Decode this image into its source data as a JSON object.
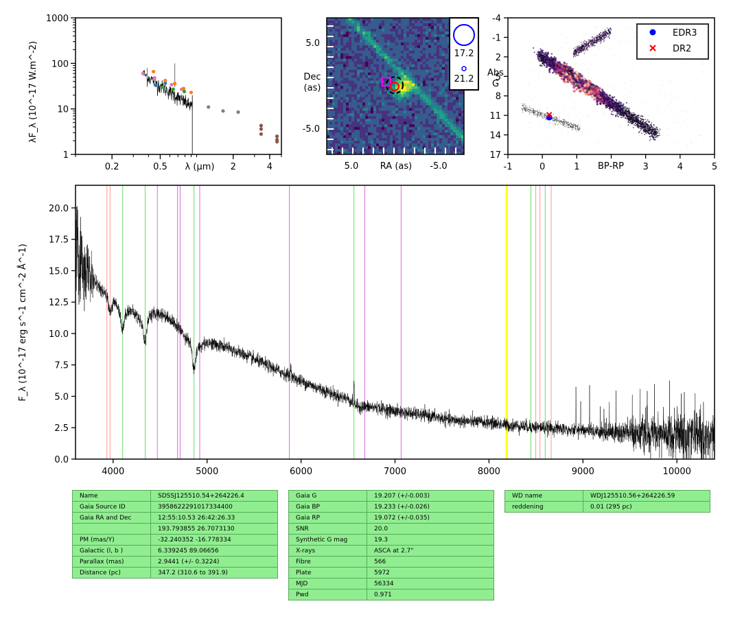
{
  "sed": {
    "ylabel": "λF_λ (10^-17 W.m^-2)",
    "xlabel": "λ (μm)",
    "x_ticks": [
      "0.2",
      "0.5",
      "2",
      "4"
    ],
    "y_ticks": [
      "1",
      "10",
      "100",
      "1000"
    ],
    "chart_data": {
      "type": "scatter",
      "x_scale": "log",
      "y_scale": "log",
      "xlim": [
        0.1,
        5
      ],
      "ylim": [
        1,
        1000
      ],
      "series": [
        {
          "color": "#e377c2",
          "points": [
            [
              0.36,
              60
            ],
            [
              0.45,
              48
            ],
            [
              0.62,
              34
            ],
            [
              0.75,
              27
            ]
          ]
        },
        {
          "color": "#1f77b4",
          "points": [
            [
              0.46,
              33
            ],
            [
              0.55,
              37
            ]
          ]
        },
        {
          "color": "#ff7f0e",
          "points": [
            [
              0.44,
              66
            ],
            [
              0.55,
              42
            ],
            [
              0.66,
              36
            ],
            [
              0.78,
              28
            ],
            [
              0.9,
              23
            ]
          ]
        },
        {
          "color": "#2ca02c",
          "points": [
            [
              0.52,
              30
            ],
            [
              0.64,
              27
            ],
            [
              0.79,
              24
            ]
          ]
        },
        {
          "color": "#7f7f7f",
          "points": [
            [
              1.25,
              11
            ],
            [
              1.65,
              9
            ],
            [
              2.2,
              8.5
            ]
          ]
        },
        {
          "color": "#8c564b",
          "points": [
            [
              3.4,
              4.3
            ],
            [
              3.4,
              3.6
            ],
            [
              3.4,
              2.8
            ],
            [
              4.6,
              2.5
            ],
            [
              4.6,
              2.1
            ],
            [
              4.6,
              1.9
            ]
          ]
        }
      ]
    }
  },
  "image": {
    "xlabel": "RA (as)",
    "ylabel_line1": "Dec",
    "ylabel_line2": "(as)",
    "x_ticks": [
      "5.0",
      "-5.0"
    ],
    "y_ticks": [
      "5.0",
      "-5.0"
    ],
    "legend_mag_big": "17.2",
    "legend_mag_small": "21.2"
  },
  "hrd": {
    "xlabel": "BP-RP",
    "ylabel_line1": "Abs",
    "ylabel_line2": "G",
    "x_ticks": [
      "-1",
      "0",
      "1",
      "3",
      "4",
      "5"
    ],
    "y_ticks": [
      "-4",
      "-1",
      "2",
      "5",
      "8",
      "11",
      "14",
      "17"
    ],
    "legend": [
      {
        "label": "EDR3",
        "color": "#0000ff",
        "marker": "circle"
      },
      {
        "label": "DR2",
        "color": "#ff0000",
        "marker": "x"
      }
    ],
    "chart_data": {
      "type": "scatter",
      "xlim": [
        -1,
        5
      ],
      "ylim": [
        17,
        -4
      ],
      "points": [
        {
          "series": "EDR3",
          "x": 0.2,
          "y": 11.3
        },
        {
          "series": "DR2",
          "x": 0.2,
          "y": 10.9
        }
      ]
    }
  },
  "spectrum": {
    "ylabel": "F_λ (10^-17 erg s^-1 cm^-2 Å^-1)",
    "x_ticks": [
      "4000",
      "5000",
      "6000",
      "7000",
      "8000",
      "9000",
      "10000"
    ],
    "y_ticks": [
      "0.0",
      "2.5",
      "5.0",
      "7.5",
      "10.0",
      "12.5",
      "15.0",
      "17.5",
      "20.0"
    ],
    "chart_data": {
      "type": "line",
      "xlim": [
        3600,
        10400
      ],
      "ylim": [
        0,
        21.8
      ],
      "continuum": [
        [
          3600,
          16.5
        ],
        [
          3700,
          15.2
        ],
        [
          3800,
          14.2
        ],
        [
          3900,
          13.2
        ],
        [
          4000,
          12.6
        ],
        [
          4100,
          11.8
        ],
        [
          4200,
          11.8
        ],
        [
          4300,
          11.0
        ],
        [
          4400,
          11.5
        ],
        [
          4500,
          11.6
        ],
        [
          4600,
          11.2
        ],
        [
          4700,
          10.4
        ],
        [
          4800,
          9.5
        ],
        [
          4900,
          8.9
        ],
        [
          5000,
          9.3
        ],
        [
          5200,
          8.9
        ],
        [
          5400,
          8.3
        ],
        [
          5600,
          7.6
        ],
        [
          5800,
          6.9
        ],
        [
          6000,
          6.2
        ],
        [
          6200,
          5.6
        ],
        [
          6400,
          5.0
        ],
        [
          6500,
          4.8
        ],
        [
          6600,
          4.2
        ],
        [
          6800,
          4.1
        ],
        [
          7000,
          3.8
        ],
        [
          7200,
          3.6
        ],
        [
          7400,
          3.4
        ],
        [
          7600,
          3.1
        ],
        [
          7800,
          3.0
        ],
        [
          8000,
          2.9
        ],
        [
          8200,
          2.7
        ],
        [
          8400,
          2.6
        ],
        [
          8600,
          2.5
        ],
        [
          8800,
          2.4
        ],
        [
          9000,
          2.3
        ],
        [
          9200,
          2.2
        ],
        [
          9400,
          2.1
        ],
        [
          9600,
          2.1
        ],
        [
          9800,
          2.0
        ],
        [
          10000,
          1.9
        ],
        [
          10200,
          1.9
        ],
        [
          10400,
          2.0
        ]
      ],
      "absorption": [
        {
          "center": 4101,
          "depth": 1.5
        },
        {
          "center": 4340,
          "depth": 1.8
        },
        {
          "center": 4861,
          "depth": 2.0
        },
        {
          "center": 3970,
          "depth": 1.0
        }
      ],
      "emission": [
        {
          "center": 5890,
          "height": 1.2
        },
        {
          "center": 6563,
          "height": 1.5
        }
      ],
      "lines": [
        {
          "x": 3934,
          "color": "#ff9999"
        },
        {
          "x": 3968,
          "color": "#ff9999"
        },
        {
          "x": 4102,
          "color": "#66dd66"
        },
        {
          "x": 4341,
          "color": "#66dd66"
        },
        {
          "x": 4471,
          "color": "#dd66dd"
        },
        {
          "x": 4686,
          "color": "#dd66dd"
        },
        {
          "x": 4713,
          "color": "#dd66dd"
        },
        {
          "x": 4861,
          "color": "#66dd66"
        },
        {
          "x": 4922,
          "color": "#dd66dd"
        },
        {
          "x": 5876,
          "color": "#dd66dd"
        },
        {
          "x": 6563,
          "color": "#66dd66"
        },
        {
          "x": 6678,
          "color": "#dd66dd"
        },
        {
          "x": 7065,
          "color": "#dd66dd"
        },
        {
          "x": 8183,
          "color": "#ffff00"
        },
        {
          "x": 8195,
          "color": "#ffff00"
        },
        {
          "x": 8446,
          "color": "#66dd66"
        },
        {
          "x": 8498,
          "color": "#ff9999"
        },
        {
          "x": 8542,
          "color": "#ff9999"
        },
        {
          "x": 8598,
          "color": "#66dd66"
        },
        {
          "x": 8662,
          "color": "#ff9999"
        }
      ]
    }
  },
  "table1": [
    [
      "Name",
      "SDSSJ125510.54+264226.4"
    ],
    [
      "Gaia Source ID",
      "3958622291017334400"
    ],
    [
      "Gaia RA and Dec",
      "12:55:10.53    26:42:26.33"
    ],
    [
      "",
      "193.793855    26.7073130"
    ],
    [
      "PM (mas/Y)",
      "-32.240352    -16.778334"
    ],
    [
      "Galactic (l, b )",
      "6.339245    89.06656"
    ],
    [
      "Parallax (mas)",
      "2.9441 (+/- 0.3224)"
    ],
    [
      "Distance (pc)",
      "347.2 (310.6 to 391.9)"
    ]
  ],
  "table2": [
    [
      "Gaia G",
      "19.207 (+/-0.003)"
    ],
    [
      "Gaia BP",
      "19.233 (+/-0.026)"
    ],
    [
      "Gaia RP",
      "19.072 (+/-0.035)"
    ],
    [
      "SNR",
      "20.0"
    ],
    [
      "Synthetic G mag",
      "19.3"
    ],
    [
      "X-rays",
      "ASCA at 2.7\""
    ],
    [
      "Fibre",
      "566"
    ],
    [
      "Plate",
      "5972"
    ],
    [
      "MJD",
      "56334"
    ],
    [
      "Pwd",
      "0.971"
    ]
  ],
  "table3": [
    [
      "WD name",
      "WDJ125510.56+264226.59"
    ],
    [
      "reddening",
      "0.01 (295 pc)"
    ]
  ]
}
